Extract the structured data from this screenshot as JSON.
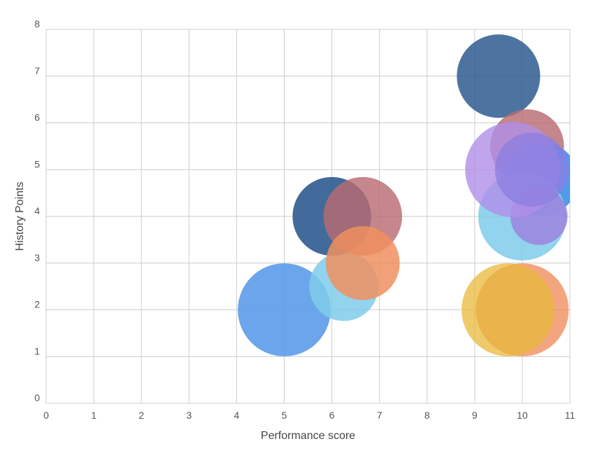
{
  "chart_data": {
    "type": "scatter",
    "subtype": "bubble",
    "title": "",
    "xlabel": "Performance score",
    "ylabel": "History Points",
    "xlim": [
      0,
      11
    ],
    "ylim": [
      0,
      8
    ],
    "x_ticks": [
      "0",
      "1",
      "2",
      "3",
      "4",
      "5",
      "6",
      "7",
      "8",
      "9",
      "10",
      "11"
    ],
    "y_ticks": [
      "0",
      "1",
      "2",
      "3",
      "4",
      "5",
      "6",
      "7",
      "8"
    ],
    "grid": true,
    "legend": "none",
    "points": [
      {
        "x": 5.0,
        "y": 2.0,
        "size": 1.95,
        "color": "#5b9bea",
        "opacity": 0.9
      },
      {
        "x": 6.25,
        "y": 2.5,
        "size": 1.45,
        "color": "#7fcbea",
        "opacity": 0.85
      },
      {
        "x": 6.0,
        "y": 4.0,
        "size": 1.65,
        "color": "#2e5a8f",
        "opacity": 0.9
      },
      {
        "x": 6.65,
        "y": 4.0,
        "size": 1.65,
        "color": "#b86b73",
        "opacity": 0.82
      },
      {
        "x": 6.65,
        "y": 3.0,
        "size": 1.55,
        "color": "#f08f5f",
        "opacity": 0.85
      },
      {
        "x": 9.5,
        "y": 7.0,
        "size": 1.75,
        "color": "#2e5a8f",
        "opacity": 0.85
      },
      {
        "x": 10.1,
        "y": 5.5,
        "size": 1.55,
        "color": "#b86b73",
        "opacity": 0.82
      },
      {
        "x": 10.4,
        "y": 4.8,
        "size": 1.55,
        "color": "#3d8fe8",
        "opacity": 0.9
      },
      {
        "x": 10.0,
        "y": 4.0,
        "size": 1.85,
        "color": "#7fcbea",
        "opacity": 0.85
      },
      {
        "x": 10.35,
        "y": 4.0,
        "size": 1.2,
        "color": "#9b82de",
        "opacity": 0.85
      },
      {
        "x": 9.8,
        "y": 5.0,
        "size": 2.0,
        "color": "#b08fe8",
        "opacity": 0.8
      },
      {
        "x": 10.2,
        "y": 5.0,
        "size": 1.55,
        "color": "#8b7de0",
        "opacity": 0.75
      },
      {
        "x": 10.0,
        "y": 2.0,
        "size": 1.95,
        "color": "#f08f5f",
        "opacity": 0.8
      },
      {
        "x": 9.7,
        "y": 2.0,
        "size": 1.95,
        "color": "#e8b83a",
        "opacity": 0.75
      }
    ]
  }
}
